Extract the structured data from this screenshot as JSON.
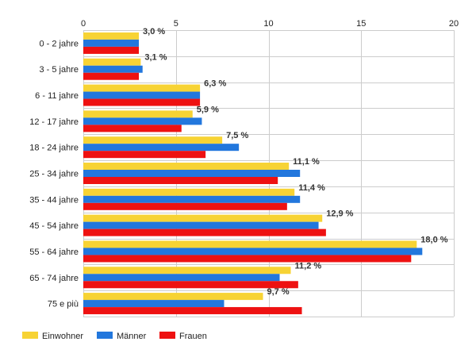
{
  "chart_data": {
    "type": "bar",
    "orientation": "horizontal",
    "categories": [
      "0 - 2 jahre",
      "3 - 5 jahre",
      "6 - 11 jahre",
      "12 - 17 jahre",
      "18 - 24 jahre",
      "25 - 34 jahre",
      "35 - 44 jahre",
      "45 - 54 jahre",
      "55 - 64 jahre",
      "65 - 74 jahre",
      "75 e più"
    ],
    "series": [
      {
        "name": "Einwohner",
        "color": "#f7d334",
        "values": [
          3.0,
          3.1,
          6.3,
          5.9,
          7.5,
          11.1,
          11.4,
          12.9,
          18.0,
          11.2,
          9.7
        ]
      },
      {
        "name": "Männer",
        "color": "#2277dd",
        "values": [
          3.0,
          3.2,
          6.3,
          6.4,
          8.4,
          11.7,
          11.7,
          12.7,
          18.3,
          10.6,
          7.6
        ]
      },
      {
        "name": "Frauen",
        "color": "#ee1111",
        "values": [
          3.0,
          3.0,
          6.3,
          5.3,
          6.6,
          10.5,
          11.0,
          13.1,
          17.7,
          11.6,
          11.8
        ]
      }
    ],
    "data_labels": [
      "3,0 %",
      "3,1 %",
      "6,3 %",
      "5,9 %",
      "7,5 %",
      "11,1 %",
      "11,4 %",
      "12,9 %",
      "18,0 %",
      "11,2 %",
      "9,7 %"
    ],
    "x_ticks": [
      "0",
      "5",
      "10",
      "15",
      "20"
    ],
    "xlim": [
      0,
      20
    ],
    "x_axis_position": "top",
    "grid": true,
    "legend_position": "bottom-left"
  }
}
